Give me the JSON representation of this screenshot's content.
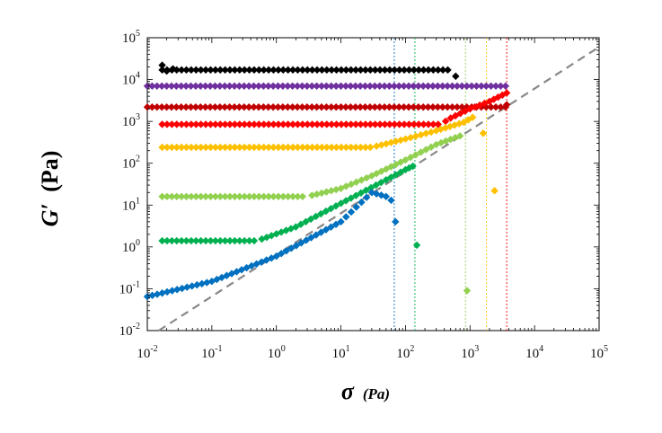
{
  "chart_data": {
    "type": "scatter",
    "x_scale": "log",
    "y_scale": "log",
    "xlim": [
      0.01,
      100000
    ],
    "ylim": [
      0.01,
      100000
    ],
    "xlabel": {
      "symbol": "σ",
      "unit": "(Pa)"
    },
    "ylabel": {
      "symbol": "G′",
      "unit": "(Pa)"
    },
    "x_tick_labels": [
      {
        "base": "10",
        "exp": "-2"
      },
      {
        "base": "10",
        "exp": "-1"
      },
      {
        "base": "10",
        "exp": "0"
      },
      {
        "base": "10",
        "exp": "1"
      },
      {
        "base": "10",
        "exp": "2"
      },
      {
        "base": "10",
        "exp": "3"
      },
      {
        "base": "10",
        "exp": "4"
      },
      {
        "base": "10",
        "exp": "5"
      }
    ],
    "y_tick_labels": [
      {
        "base": "10",
        "exp": "-2"
      },
      {
        "base": "10",
        "exp": "-1"
      },
      {
        "base": "10",
        "exp": "0"
      },
      {
        "base": "10",
        "exp": "1"
      },
      {
        "base": "10",
        "exp": "2"
      },
      {
        "base": "10",
        "exp": "3"
      },
      {
        "base": "10",
        "exp": "4"
      },
      {
        "base": "10",
        "exp": "5"
      }
    ],
    "grid": false,
    "legend": "none",
    "reference_line": {
      "style": "dashed",
      "color": "#888888",
      "from": [
        0.015,
        0.01
      ],
      "to": [
        100000,
        60000
      ]
    },
    "series": [
      {
        "color": "#000000",
        "plateau": 17000,
        "x_start": 0.017,
        "x_end": 500,
        "points": [
          [
            0.017,
            22000
          ],
          [
            0.02,
            16000
          ],
          [
            0.025,
            18000
          ],
          [
            600,
            12000
          ]
        ]
      },
      {
        "color": "#7030A0",
        "plateau": 7000,
        "x_start": 0.01,
        "x_end": 3700,
        "points": []
      },
      {
        "color": "#C00000",
        "plateau": 2200,
        "x_start": 0.01,
        "x_end": 3700,
        "points": [
          [
            3700,
            2500
          ]
        ]
      },
      {
        "color": "#FF0000",
        "plateau": 850,
        "x_start": 0.017,
        "x_end": 350,
        "rise": [
          [
            500,
            1200
          ],
          [
            1000,
            2000
          ],
          [
            2000,
            3000
          ],
          [
            3700,
            4800
          ]
        ],
        "points": []
      },
      {
        "color": "#FFC000",
        "plateau": 240,
        "x_start": 0.017,
        "x_end": 30,
        "rise": [
          [
            100,
            380
          ],
          [
            300,
            600
          ],
          [
            800,
            950
          ],
          [
            1100,
            1250
          ]
        ],
        "points": [
          [
            1600,
            520
          ],
          [
            2400,
            22
          ]
        ]
      },
      {
        "color": "#92D050",
        "plateau": 16,
        "x_start": 0.017,
        "x_end": 3,
        "rise": [
          [
            10,
            25
          ],
          [
            30,
            50
          ],
          [
            100,
            120
          ],
          [
            300,
            280
          ],
          [
            700,
            450
          ]
        ],
        "points": [
          [
            900,
            0.09
          ]
        ]
      },
      {
        "color": "#00B050",
        "plateau": 1.4,
        "x_start": 0.017,
        "x_end": 0.5,
        "rise": [
          [
            2,
            3
          ],
          [
            10,
            11
          ],
          [
            50,
            40
          ],
          [
            100,
            70
          ],
          [
            130,
            85
          ]
        ],
        "points": [
          [
            150,
            1.1
          ]
        ]
      },
      {
        "color": "#0070C0",
        "plateau": 0.065,
        "x_start": 0.01,
        "x_end": 0.01,
        "rise": [
          [
            0.1,
            0.15
          ],
          [
            1,
            0.6
          ],
          [
            10,
            4
          ],
          [
            30,
            20
          ],
          [
            50,
            16
          ]
        ],
        "points": [
          [
            60,
            13
          ],
          [
            70,
            4
          ]
        ]
      }
    ],
    "vertical_lines": [
      {
        "x": 67,
        "color": "#0070C0"
      },
      {
        "x": 140,
        "color": "#00B050"
      },
      {
        "x": 850,
        "color": "#92D050"
      },
      {
        "x": 1800,
        "color": "#FFC000"
      },
      {
        "x": 3700,
        "color": "#FF0000"
      }
    ]
  }
}
